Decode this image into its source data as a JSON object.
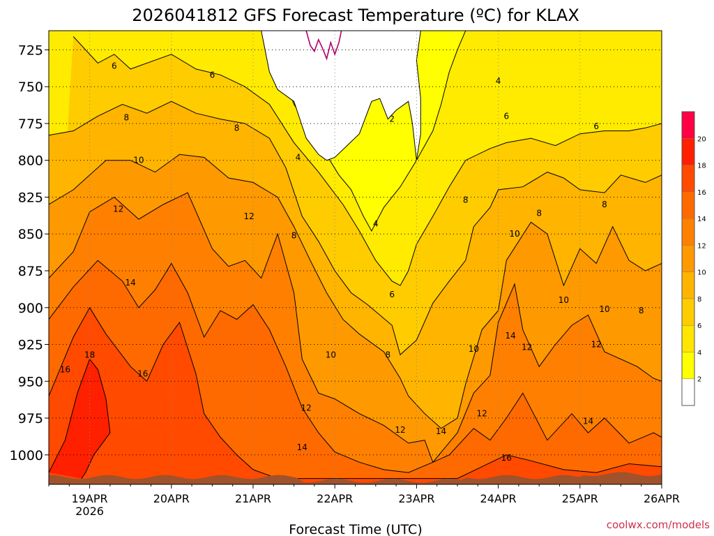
{
  "chart_data": {
    "type": "heatmap",
    "title": "2026041812 GFS Forecast Temperature (ºC) for KLAX",
    "xlabel": "Forecast Time (UTC)",
    "ylabel": "",
    "credit": "coolwx.com/models",
    "x_ticks": [
      {
        "label": "19APR",
        "sublabel": "2026",
        "day": 1
      },
      {
        "label": "20APR",
        "day": 2
      },
      {
        "label": "21APR",
        "day": 3
      },
      {
        "label": "22APR",
        "day": 4
      },
      {
        "label": "23APR",
        "day": 5
      },
      {
        "label": "24APR",
        "day": 6
      },
      {
        "label": "25APR",
        "day": 7
      },
      {
        "label": "26APR",
        "day": 8
      }
    ],
    "xlim_days": [
      0.5,
      8.0
    ],
    "y_ticks": [
      "725",
      "750",
      "775",
      "800",
      "825",
      "850",
      "875",
      "900",
      "925",
      "950",
      "975",
      "1000"
    ],
    "ylim_hpa": [
      712,
      1020
    ],
    "colorbar": {
      "levels": [
        "2",
        "4",
        "6",
        "8",
        "10",
        "12",
        "14",
        "16",
        "18",
        "20"
      ],
      "colors": [
        "#ffffff",
        "#ffff00",
        "#ffe500",
        "#ffcc00",
        "#ffb400",
        "#ff9900",
        "#ff8000",
        "#ff6a00",
        "#ff4a00",
        "#ff2000",
        "#ff0044"
      ]
    },
    "contours": [
      {
        "level": "6",
        "points": [
          [
            0.8,
            716
          ],
          [
            1.1,
            734
          ],
          [
            1.3,
            728
          ],
          [
            1.5,
            738
          ],
          [
            1.8,
            732
          ],
          [
            2.0,
            728
          ],
          [
            2.3,
            738
          ],
          [
            2.6,
            742
          ],
          [
            2.9,
            750
          ],
          [
            3.2,
            762
          ],
          [
            3.5,
            788
          ],
          [
            3.8,
            808
          ],
          [
            4.1,
            830
          ],
          [
            4.3,
            848
          ],
          [
            4.5,
            868
          ],
          [
            4.7,
            882
          ],
          [
            4.8,
            885
          ],
          [
            4.9,
            875
          ],
          [
            5.0,
            857
          ],
          [
            5.2,
            838
          ],
          [
            5.4,
            818
          ],
          [
            5.6,
            800
          ],
          [
            5.9,
            792
          ],
          [
            6.1,
            788
          ],
          [
            6.4,
            785
          ],
          [
            6.7,
            790
          ],
          [
            7.0,
            782
          ],
          [
            7.3,
            780
          ],
          [
            7.6,
            780
          ],
          [
            7.8,
            778
          ],
          [
            8.0,
            775
          ]
        ]
      },
      {
        "level": "8",
        "points": [
          [
            0.5,
            783
          ],
          [
            0.8,
            780
          ],
          [
            1.1,
            770
          ],
          [
            1.4,
            762
          ],
          [
            1.7,
            768
          ],
          [
            2.0,
            760
          ],
          [
            2.3,
            768
          ],
          [
            2.6,
            772
          ],
          [
            2.9,
            775
          ],
          [
            3.2,
            785
          ],
          [
            3.4,
            805
          ],
          [
            3.6,
            838
          ],
          [
            3.8,
            855
          ],
          [
            4.0,
            875
          ],
          [
            4.2,
            890
          ],
          [
            4.4,
            898
          ],
          [
            4.7,
            912
          ],
          [
            4.8,
            932
          ],
          [
            5.0,
            922
          ],
          [
            5.2,
            897
          ],
          [
            5.4,
            882
          ],
          [
            5.6,
            868
          ],
          [
            5.7,
            845
          ],
          [
            5.9,
            832
          ],
          [
            6.0,
            820
          ],
          [
            6.3,
            818
          ],
          [
            6.6,
            808
          ],
          [
            6.8,
            812
          ],
          [
            7.0,
            820
          ],
          [
            7.3,
            822
          ],
          [
            7.5,
            810
          ],
          [
            7.8,
            815
          ],
          [
            8.0,
            810
          ]
        ]
      },
      {
        "level": "10",
        "points": [
          [
            0.5,
            830
          ],
          [
            0.8,
            820
          ],
          [
            1.2,
            800
          ],
          [
            1.5,
            800
          ],
          [
            1.8,
            808
          ],
          [
            2.1,
            796
          ],
          [
            2.4,
            798
          ],
          [
            2.7,
            812
          ],
          [
            3.0,
            815
          ],
          [
            3.3,
            825
          ],
          [
            3.5,
            845
          ],
          [
            3.7,
            868
          ],
          [
            3.9,
            890
          ],
          [
            4.1,
            908
          ],
          [
            4.3,
            918
          ],
          [
            4.6,
            930
          ],
          [
            4.8,
            948
          ],
          [
            4.9,
            960
          ],
          [
            5.1,
            972
          ],
          [
            5.3,
            982
          ],
          [
            5.5,
            975
          ],
          [
            5.6,
            952
          ],
          [
            5.8,
            915
          ],
          [
            6.0,
            902
          ],
          [
            6.1,
            868
          ],
          [
            6.4,
            842
          ],
          [
            6.6,
            850
          ],
          [
            6.8,
            885
          ],
          [
            7.0,
            860
          ],
          [
            7.2,
            870
          ],
          [
            7.4,
            845
          ],
          [
            7.6,
            868
          ],
          [
            7.8,
            875
          ],
          [
            8.0,
            870
          ]
        ]
      },
      {
        "level": "12",
        "points": [
          [
            0.5,
            880
          ],
          [
            0.8,
            862
          ],
          [
            1.0,
            835
          ],
          [
            1.3,
            825
          ],
          [
            1.6,
            840
          ],
          [
            1.9,
            830
          ],
          [
            2.2,
            822
          ],
          [
            2.5,
            860
          ],
          [
            2.7,
            872
          ],
          [
            2.9,
            868
          ],
          [
            3.1,
            880
          ],
          [
            3.3,
            850
          ],
          [
            3.5,
            890
          ],
          [
            3.6,
            935
          ],
          [
            3.8,
            958
          ],
          [
            4.0,
            962
          ],
          [
            4.3,
            972
          ],
          [
            4.6,
            980
          ],
          [
            4.9,
            992
          ],
          [
            5.1,
            990
          ],
          [
            5.2,
            1005
          ],
          [
            5.5,
            985
          ],
          [
            5.7,
            958
          ],
          [
            5.9,
            946
          ],
          [
            6.0,
            910
          ],
          [
            6.2,
            884
          ],
          [
            6.3,
            915
          ],
          [
            6.5,
            940
          ],
          [
            6.7,
            925
          ],
          [
            6.9,
            912
          ],
          [
            7.1,
            905
          ],
          [
            7.3,
            930
          ],
          [
            7.5,
            935
          ],
          [
            7.7,
            940
          ],
          [
            7.9,
            948
          ],
          [
            8.0,
            950
          ]
        ]
      },
      {
        "level": "14",
        "points": [
          [
            0.5,
            908
          ],
          [
            0.8,
            886
          ],
          [
            1.1,
            868
          ],
          [
            1.4,
            882
          ],
          [
            1.6,
            900
          ],
          [
            1.8,
            888
          ],
          [
            2.0,
            870
          ],
          [
            2.2,
            890
          ],
          [
            2.4,
            920
          ],
          [
            2.6,
            902
          ],
          [
            2.8,
            908
          ],
          [
            3.0,
            898
          ],
          [
            3.2,
            915
          ],
          [
            3.4,
            940
          ],
          [
            3.6,
            968
          ],
          [
            3.8,
            985
          ],
          [
            4.0,
            998
          ],
          [
            4.3,
            1005
          ],
          [
            4.6,
            1010
          ],
          [
            4.9,
            1012
          ],
          [
            5.2,
            1005
          ],
          [
            5.4,
            1000
          ],
          [
            5.7,
            982
          ],
          [
            5.9,
            990
          ],
          [
            6.1,
            975
          ],
          [
            6.3,
            958
          ],
          [
            6.6,
            990
          ],
          [
            6.9,
            972
          ],
          [
            7.1,
            985
          ],
          [
            7.3,
            975
          ],
          [
            7.6,
            992
          ],
          [
            7.9,
            985
          ],
          [
            8.0,
            988
          ]
        ]
      },
      {
        "level": "16",
        "points": [
          [
            0.5,
            960
          ],
          [
            0.8,
            920
          ],
          [
            1.0,
            900
          ],
          [
            1.2,
            918
          ],
          [
            1.5,
            940
          ],
          [
            1.7,
            950
          ],
          [
            1.9,
            925
          ],
          [
            2.1,
            910
          ],
          [
            2.3,
            945
          ],
          [
            2.4,
            972
          ],
          [
            2.6,
            988
          ],
          [
            2.8,
            1000
          ],
          [
            3.0,
            1010
          ],
          [
            3.3,
            1016
          ],
          [
            5.5,
            1016
          ],
          [
            5.8,
            1008
          ],
          [
            6.1,
            1000
          ],
          [
            6.4,
            1004
          ],
          [
            6.8,
            1010
          ],
          [
            7.2,
            1012
          ],
          [
            7.6,
            1006
          ],
          [
            8.0,
            1008
          ]
        ]
      },
      {
        "level": "18",
        "points": [
          [
            0.5,
            1012
          ],
          [
            0.7,
            990
          ],
          [
            0.85,
            958
          ],
          [
            1.0,
            935
          ],
          [
            1.1,
            942
          ],
          [
            1.2,
            962
          ],
          [
            1.25,
            985
          ],
          [
            1.05,
            1000
          ],
          [
            0.95,
            1012
          ],
          [
            0.9,
            1016
          ]
        ]
      }
    ],
    "contour_labels": [
      {
        "text": "6",
        "x": 1.3,
        "y": 736
      },
      {
        "text": "6",
        "x": 2.5,
        "y": 742
      },
      {
        "text": "4",
        "x": 3.55,
        "y": 798
      },
      {
        "text": "2",
        "x": 4.7,
        "y": 772
      },
      {
        "text": "4",
        "x": 4.5,
        "y": 843
      },
      {
        "text": "4",
        "x": 6.0,
        "y": 746
      },
      {
        "text": "8",
        "x": 1.45,
        "y": 771
      },
      {
        "text": "8",
        "x": 2.8,
        "y": 778
      },
      {
        "text": "6",
        "x": 6.1,
        "y": 770
      },
      {
        "text": "6",
        "x": 7.2,
        "y": 777
      },
      {
        "text": "10",
        "x": 1.6,
        "y": 800
      },
      {
        "text": "12",
        "x": 1.35,
        "y": 833
      },
      {
        "text": "12",
        "x": 2.95,
        "y": 838
      },
      {
        "text": "8",
        "x": 3.5,
        "y": 851
      },
      {
        "text": "8",
        "x": 5.6,
        "y": 827
      },
      {
        "text": "8",
        "x": 6.5,
        "y": 836
      },
      {
        "text": "8",
        "x": 7.3,
        "y": 830
      },
      {
        "text": "10",
        "x": 6.2,
        "y": 850
      },
      {
        "text": "14",
        "x": 1.5,
        "y": 883
      },
      {
        "text": "6",
        "x": 4.7,
        "y": 891
      },
      {
        "text": "10",
        "x": 6.8,
        "y": 895
      },
      {
        "text": "10",
        "x": 7.3,
        "y": 901
      },
      {
        "text": "8",
        "x": 7.75,
        "y": 902
      },
      {
        "text": "18",
        "x": 1.0,
        "y": 932
      },
      {
        "text": "16",
        "x": 0.7,
        "y": 942
      },
      {
        "text": "16",
        "x": 1.65,
        "y": 945
      },
      {
        "text": "10",
        "x": 3.95,
        "y": 932
      },
      {
        "text": "8",
        "x": 4.65,
        "y": 932
      },
      {
        "text": "14",
        "x": 6.15,
        "y": 919
      },
      {
        "text": "12",
        "x": 6.35,
        "y": 927
      },
      {
        "text": "12",
        "x": 7.2,
        "y": 925
      },
      {
        "text": "10",
        "x": 5.7,
        "y": 928
      },
      {
        "text": "12",
        "x": 3.65,
        "y": 968
      },
      {
        "text": "12",
        "x": 5.8,
        "y": 972
      },
      {
        "text": "12",
        "x": 4.8,
        "y": 983
      },
      {
        "text": "14",
        "x": 5.3,
        "y": 984
      },
      {
        "text": "14",
        "x": 3.6,
        "y": 995
      },
      {
        "text": "14",
        "x": 7.1,
        "y": 977
      },
      {
        "text": "16",
        "x": 6.1,
        "y": 1002
      }
    ]
  }
}
